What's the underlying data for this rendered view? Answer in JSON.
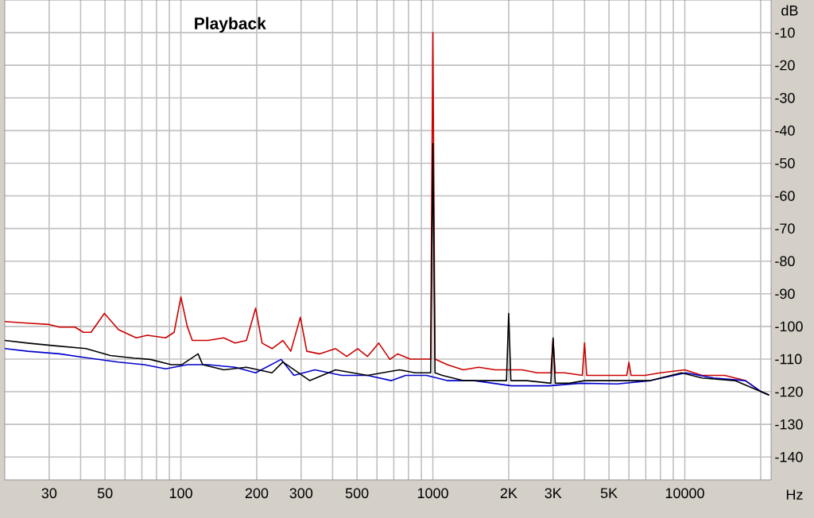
{
  "chart_data": {
    "type": "line",
    "xlabel": "Hz",
    "ylabel": "dB",
    "log": "x",
    "grid": true,
    "legend": "top left",
    "xlim": [
      20,
      22000
    ],
    "ylim": [
      -147,
      0
    ],
    "xticks": [
      {
        "value": 30,
        "label": "30"
      },
      {
        "value": 40,
        "label": null
      },
      {
        "value": 50,
        "label": "50"
      },
      {
        "value": 60,
        "label": null
      },
      {
        "value": 70,
        "label": null
      },
      {
        "value": 80,
        "label": null
      },
      {
        "value": 90,
        "label": null
      },
      {
        "value": 100,
        "label": "100"
      },
      {
        "value": 200,
        "label": "200"
      },
      {
        "value": 300,
        "label": "300"
      },
      {
        "value": 400,
        "label": null
      },
      {
        "value": 500,
        "label": "500"
      },
      {
        "value": 600,
        "label": null
      },
      {
        "value": 700,
        "label": null
      },
      {
        "value": 800,
        "label": null
      },
      {
        "value": 900,
        "label": null
      },
      {
        "value": 1000,
        "label": "1000"
      },
      {
        "value": 2000,
        "label": "2K"
      },
      {
        "value": 3000,
        "label": "3K"
      },
      {
        "value": 4000,
        "label": null
      },
      {
        "value": 5000,
        "label": "5K"
      },
      {
        "value": 6000,
        "label": null
      },
      {
        "value": 7000,
        "label": null
      },
      {
        "value": 8000,
        "label": null
      },
      {
        "value": 9000,
        "label": null
      },
      {
        "value": 10000,
        "label": "10000"
      },
      {
        "value": 20000,
        "label": null
      }
    ],
    "yticks": [
      -10,
      -20,
      -30,
      -40,
      -50,
      -60,
      -70,
      -80,
      -90,
      -100,
      -110,
      -120,
      -130,
      -140
    ],
    "series": [
      {
        "color": "#cc0000",
        "x": [
          20,
          24.7,
          30,
          33,
          38,
          41,
          44,
          49.7,
          56.6,
          66.5,
          73.6,
          87,
          94,
          100,
          106,
          111,
          128,
          148,
          164,
          182,
          198,
          210,
          230,
          254,
          273,
          298,
          316,
          355,
          411,
          455,
          503,
          550,
          610,
          675,
          725,
          813,
          944,
          980,
          1000,
          1020,
          1140,
          1320,
          1520,
          1770,
          2260,
          2600,
          2940,
          3000,
          3060,
          3340,
          3920,
          4000,
          4080,
          4500,
          5180,
          5880,
          6000,
          6120,
          6950,
          8000,
          10000,
          11700,
          14400,
          17400,
          20100,
          21600
        ],
        "values": [
          -98.5,
          -99,
          -99.4,
          -100.2,
          -100.2,
          -101.8,
          -101.8,
          -96,
          -101,
          -103.5,
          -102.7,
          -103.5,
          -101.8,
          -91,
          -100,
          -104.3,
          -104.3,
          -103.5,
          -105.1,
          -104.3,
          -94.4,
          -105.1,
          -106.8,
          -104.3,
          -107.6,
          -97.2,
          -107.6,
          -108.4,
          -106.8,
          -109.2,
          -106.8,
          -109.2,
          -105.1,
          -110.1,
          -108.4,
          -110,
          -110,
          -110,
          -10,
          -110,
          -111.7,
          -113.3,
          -112.5,
          -113.3,
          -113.3,
          -114.2,
          -114.2,
          -104,
          -114.2,
          -114.2,
          -115,
          -105,
          -115,
          -115,
          -115,
          -115,
          -111,
          -115,
          -115,
          -114.2,
          -113.3,
          -115,
          -115,
          -116.6,
          -120,
          -121
        ]
      },
      {
        "color": "#0000cc",
        "x": [
          20,
          24.7,
          33,
          42,
          56.4,
          71.5,
          87,
          106,
          128,
          164,
          198,
          250,
          281,
          340,
          435,
          550,
          685,
          780,
          944,
          1140,
          1460,
          2050,
          2890,
          3870,
          5400,
          7300,
          10100,
          13000,
          17400,
          20100,
          21600
        ],
        "values": [
          -106.8,
          -107.6,
          -108.4,
          -109.6,
          -110.9,
          -111.7,
          -113,
          -111.7,
          -111.7,
          -112.5,
          -114.2,
          -110.1,
          -115,
          -113.3,
          -115,
          -115,
          -116.6,
          -115,
          -115,
          -116.6,
          -116.6,
          -118.2,
          -118.2,
          -117.4,
          -117.6,
          -116.6,
          -114.2,
          -115.8,
          -116.6,
          -120,
          -121
        ]
      },
      {
        "name": "Playback",
        "color": "#000000",
        "x": [
          20,
          24.7,
          31.4,
          42,
          52.5,
          65,
          75.5,
          91.6,
          101,
          117,
          122,
          148,
          182,
          230,
          254,
          325,
          411,
          550,
          737,
          851,
          980,
          1000,
          1020,
          1090,
          1320,
          1960,
          2000,
          2040,
          2360,
          2940,
          3000,
          3060,
          3480,
          4000,
          5400,
          7300,
          9700,
          11700,
          15800,
          20100,
          21600
        ],
        "values": [
          -104.3,
          -105.1,
          -105.9,
          -106.8,
          -108.9,
          -109.7,
          -110.1,
          -111.7,
          -111.7,
          -108.4,
          -111.7,
          -113.3,
          -112.5,
          -114.2,
          -110.9,
          -116.6,
          -113.3,
          -115,
          -113.3,
          -114.2,
          -114.2,
          -44,
          -114.2,
          -115,
          -116.6,
          -116.6,
          -96,
          -116.6,
          -116.6,
          -117.4,
          -103.5,
          -117.4,
          -117.4,
          -116.6,
          -116.6,
          -116.6,
          -114.2,
          -115.8,
          -116.6,
          -120,
          -121
        ]
      }
    ]
  }
}
